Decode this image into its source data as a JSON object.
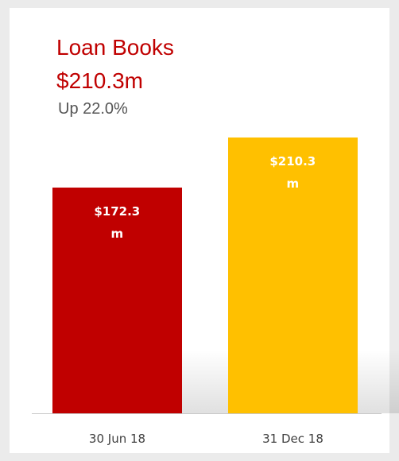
{
  "chart_data": {
    "type": "bar",
    "title": "Loan Books",
    "subtitle": "$210.3m",
    "annotation": "Up 22.0%",
    "categories": [
      "30 Jun 18",
      "31 Dec 18"
    ],
    "values": [
      172.3,
      210.3
    ],
    "value_labels": [
      "$172.3m",
      "$210.3m"
    ],
    "colors": [
      "#c00000",
      "#ffc000"
    ],
    "ylim": [
      0,
      250
    ]
  }
}
